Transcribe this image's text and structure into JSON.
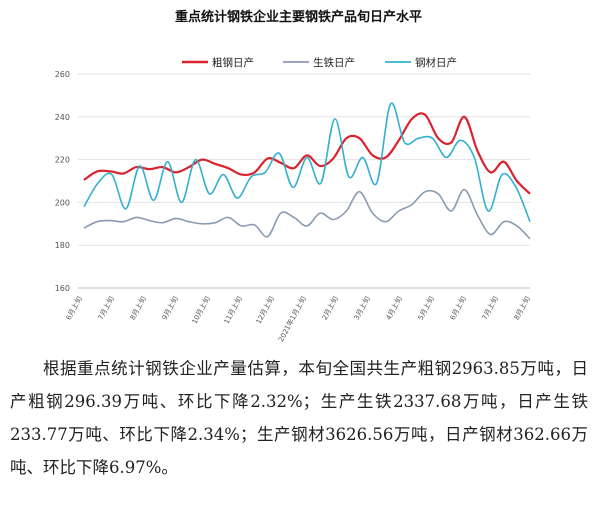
{
  "chart_data": {
    "type": "line",
    "title": "重点统计钢铁企业主要钢铁产品旬日产水平",
    "xlabel": "",
    "ylabel": "",
    "ylim": [
      160,
      260
    ],
    "yticks": [
      160,
      180,
      200,
      220,
      240,
      260
    ],
    "grid": true,
    "legend_position": "top",
    "xtick_labels": [
      "6月上旬",
      "7月上旬",
      "8月上旬",
      "9月上旬",
      "10月上旬",
      "11月上旬",
      "12月上旬",
      "2021年1月上旬",
      "2月上旬",
      "3月上旬",
      "4月上旬",
      "5月上旬",
      "6月上旬",
      "7月上旬",
      "8月上旬"
    ],
    "series": [
      {
        "name": "粗钢日产",
        "color": "#d9232e",
        "values": [
          210.5,
          214.5,
          214.5,
          213.5,
          216.5,
          215.5,
          216.5,
          214,
          216.5,
          220,
          218,
          216,
          213,
          214,
          220.5,
          218.5,
          216,
          222,
          217,
          220.5,
          230,
          230,
          222,
          221,
          229,
          239,
          241,
          230,
          228,
          240,
          224,
          214,
          219,
          210,
          204
        ]
      },
      {
        "name": "生铁日产",
        "color": "#8a9bb0",
        "values": [
          188,
          191,
          191.5,
          191,
          193,
          191.5,
          190.5,
          192.5,
          191,
          190,
          190.5,
          193,
          189,
          189.5,
          184,
          195,
          193,
          189,
          195,
          192,
          196,
          205,
          195,
          191,
          196,
          199,
          205,
          204,
          196,
          206,
          194,
          185,
          191,
          189,
          183
        ]
      },
      {
        "name": "钢材日产",
        "color": "#33b0d0",
        "values": [
          198,
          209,
          213,
          197,
          217,
          201,
          219,
          200,
          220,
          204,
          213,
          202,
          212,
          214,
          223,
          207,
          221,
          209,
          239,
          212,
          221,
          209,
          246,
          228,
          230,
          230,
          221,
          229,
          221,
          196,
          213,
          207,
          191
        ]
      }
    ]
  },
  "article": {
    "text": "根据重点统计钢铁企业产量估算，本旬全国共生产粗钢2963.85万吨，日产粗钢296.39万吨、环比下降2.32%；生产生铁2337.68万吨，日产生铁233.77万吨、环比下降2.34%；生产钢材3626.56万吨，日产钢材362.66万吨、环比下降6.97%。"
  }
}
